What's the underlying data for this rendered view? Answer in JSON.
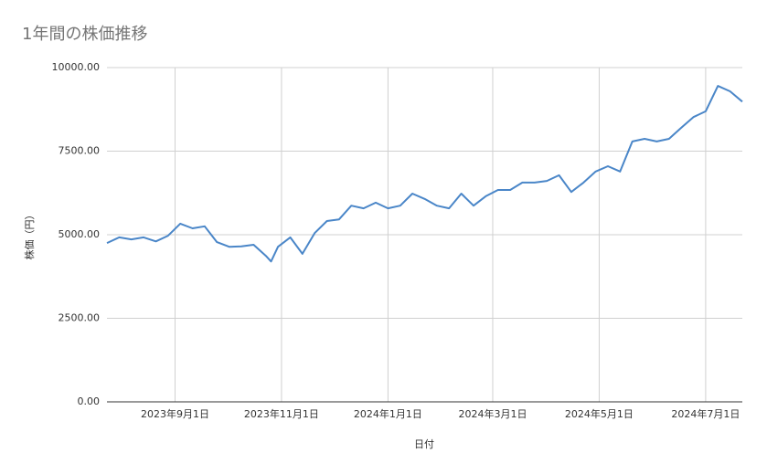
{
  "chart_data": {
    "type": "line",
    "title": "1年間の株価推移",
    "x_label": "日付",
    "y_label": "株価（円）",
    "x": [
      "2023-07-24",
      "2023-07-31",
      "2023-08-07",
      "2023-08-14",
      "2023-08-21",
      "2023-08-28",
      "2023-09-04",
      "2023-09-11",
      "2023-09-18",
      "2023-09-25",
      "2023-10-02",
      "2023-10-09",
      "2023-10-16",
      "2023-10-23",
      "2023-10-26",
      "2023-10-30",
      "2023-11-06",
      "2023-11-13",
      "2023-11-20",
      "2023-11-27",
      "2023-12-04",
      "2023-12-11",
      "2023-12-18",
      "2023-12-25",
      "2024-01-01",
      "2024-01-08",
      "2024-01-15",
      "2024-01-22",
      "2024-01-29",
      "2024-02-05",
      "2024-02-12",
      "2024-02-19",
      "2024-02-26",
      "2024-03-04",
      "2024-03-11",
      "2024-03-18",
      "2024-03-25",
      "2024-04-01",
      "2024-04-08",
      "2024-04-15",
      "2024-04-22",
      "2024-04-29",
      "2024-05-06",
      "2024-05-13",
      "2024-05-20",
      "2024-05-27",
      "2024-06-03",
      "2024-06-10",
      "2024-06-17",
      "2024-06-24",
      "2024-07-01",
      "2024-07-08",
      "2024-07-15",
      "2024-07-22"
    ],
    "series": [
      {
        "name": "株価",
        "color": "#4a86c8",
        "values": [
          4750,
          4920,
          4860,
          4920,
          4800,
          4970,
          5330,
          5190,
          5250,
          4780,
          4640,
          4650,
          4700,
          4370,
          4200,
          4640,
          4920,
          4430,
          5050,
          5410,
          5460,
          5870,
          5790,
          5960,
          5790,
          5870,
          6230,
          6070,
          5870,
          5790,
          6230,
          5870,
          6150,
          6340,
          6340,
          6560,
          6560,
          6610,
          6780,
          6280,
          6560,
          6890,
          7050,
          6890,
          7790,
          7870,
          7790,
          7870,
          8200,
          8520,
          8690,
          9450,
          9290,
          8980
        ]
      }
    ],
    "xlim": [
      "2023-07-24",
      "2024-07-22"
    ],
    "xticks": [
      {
        "value": "2023-09-01",
        "label": "2023年9月1日"
      },
      {
        "value": "2023-11-01",
        "label": "2023年11月1日"
      },
      {
        "value": "2024-01-01",
        "label": "2024年1月1日"
      },
      {
        "value": "2024-03-01",
        "label": "2024年3月1日"
      },
      {
        "value": "2024-05-01",
        "label": "2024年5月1日"
      },
      {
        "value": "2024-07-01",
        "label": "2024年7月1日"
      }
    ],
    "ylim": [
      0,
      10000
    ],
    "yticks": [
      {
        "value": 0,
        "label": "0.00"
      },
      {
        "value": 2500,
        "label": "2500.00"
      },
      {
        "value": 5000,
        "label": "5000.00"
      },
      {
        "value": 7500,
        "label": "7500.00"
      },
      {
        "value": 10000,
        "label": "10000.00"
      }
    ],
    "grid": true
  }
}
